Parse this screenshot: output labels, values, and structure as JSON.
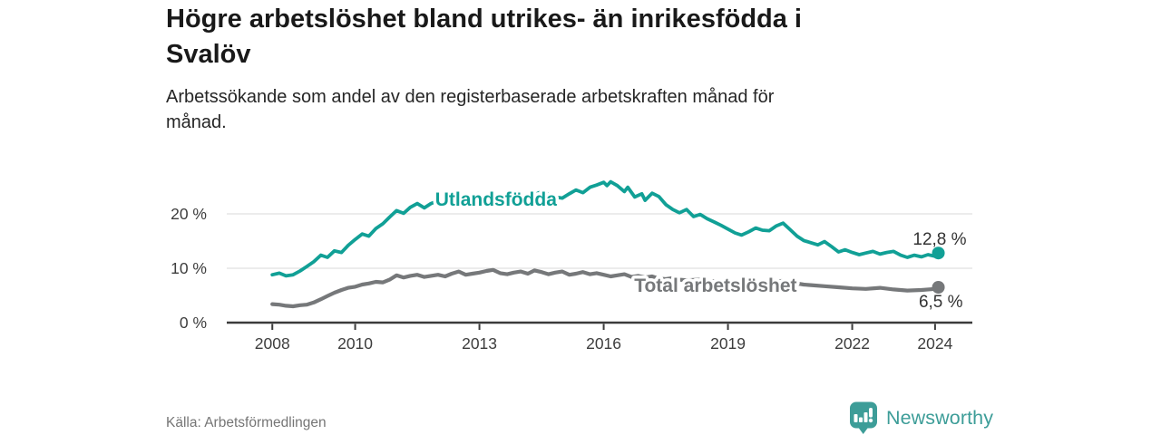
{
  "header": {
    "title": "Högre arbetslöshet bland utrikes- än inrikesfödda i\nSvalöv",
    "subtitle": "Arbetssökande som andel av den registerbaserade arbetskraften månad för\nmånad."
  },
  "footer": {
    "source": "Källa: Arbetsförmedlingen",
    "logo_text": "Newsworthy",
    "logo_color": "#3d9d98"
  },
  "chart_data": {
    "type": "line",
    "unit": "%",
    "x_domain": [
      2006.9,
      2024.9
    ],
    "y_domain": [
      0,
      28
    ],
    "grid": "horizontal",
    "axis_color": "#3b3b3b",
    "grid_color": "#d9d9d9",
    "value_label_color": "#333333",
    "x_ticks": [
      2008,
      2010,
      2013,
      2016,
      2019,
      2022,
      2024
    ],
    "y_ticks": [
      {
        "value": 0,
        "label": "0 %"
      },
      {
        "value": 10,
        "label": "10 %"
      },
      {
        "value": 20,
        "label": "20 %"
      }
    ],
    "series": [
      {
        "name": "Total arbetslöshet",
        "color": "#76787a",
        "width": 4.2,
        "label": {
          "x": 2018.7,
          "y": 6.8
        },
        "end_value": 6.5,
        "end_label": "6,5 %",
        "end_label_offset": {
          "dx": 27,
          "dy": 22
        },
        "points": [
          [
            2008.0,
            3.4
          ],
          [
            2008.17,
            3.3
          ],
          [
            2008.33,
            3.1
          ],
          [
            2008.5,
            3.0
          ],
          [
            2008.67,
            3.2
          ],
          [
            2008.83,
            3.3
          ],
          [
            2009.0,
            3.7
          ],
          [
            2009.17,
            4.3
          ],
          [
            2009.33,
            4.9
          ],
          [
            2009.5,
            5.5
          ],
          [
            2009.67,
            6.0
          ],
          [
            2009.83,
            6.4
          ],
          [
            2010.0,
            6.6
          ],
          [
            2010.17,
            7.0
          ],
          [
            2010.33,
            7.2
          ],
          [
            2010.5,
            7.5
          ],
          [
            2010.67,
            7.4
          ],
          [
            2010.83,
            7.9
          ],
          [
            2011.0,
            8.7
          ],
          [
            2011.17,
            8.3
          ],
          [
            2011.33,
            8.6
          ],
          [
            2011.5,
            8.8
          ],
          [
            2011.67,
            8.4
          ],
          [
            2011.83,
            8.6
          ],
          [
            2012.0,
            8.8
          ],
          [
            2012.17,
            8.5
          ],
          [
            2012.33,
            9.0
          ],
          [
            2012.5,
            9.4
          ],
          [
            2012.67,
            8.8
          ],
          [
            2012.83,
            9.0
          ],
          [
            2013.0,
            9.2
          ],
          [
            2013.17,
            9.5
          ],
          [
            2013.33,
            9.7
          ],
          [
            2013.5,
            9.1
          ],
          [
            2013.67,
            8.9
          ],
          [
            2013.83,
            9.2
          ],
          [
            2014.0,
            9.4
          ],
          [
            2014.17,
            9.0
          ],
          [
            2014.33,
            9.6
          ],
          [
            2014.5,
            9.3
          ],
          [
            2014.67,
            8.9
          ],
          [
            2014.83,
            9.2
          ],
          [
            2015.0,
            9.4
          ],
          [
            2015.17,
            8.8
          ],
          [
            2015.33,
            9.0
          ],
          [
            2015.5,
            9.3
          ],
          [
            2015.67,
            8.9
          ],
          [
            2015.83,
            9.1
          ],
          [
            2016.0,
            8.8
          ],
          [
            2016.17,
            8.5
          ],
          [
            2016.33,
            8.7
          ],
          [
            2016.5,
            8.9
          ],
          [
            2016.67,
            8.4
          ],
          [
            2016.83,
            8.6
          ],
          [
            2017.0,
            8.3
          ],
          [
            2017.17,
            8.5
          ],
          [
            2017.33,
            8.1
          ],
          [
            2017.5,
            8.0
          ],
          [
            2017.67,
            8.2
          ],
          [
            2017.83,
            7.9
          ],
          [
            2018.0,
            7.8
          ],
          [
            2018.33,
            7.9
          ],
          [
            2018.67,
            7.6
          ],
          [
            2019.0,
            7.4
          ],
          [
            2019.33,
            7.3
          ],
          [
            2019.67,
            7.2
          ],
          [
            2020.0,
            7.4
          ],
          [
            2020.33,
            7.7
          ],
          [
            2020.67,
            7.2
          ],
          [
            2020.83,
            7.0
          ],
          [
            2021.0,
            6.9
          ],
          [
            2021.33,
            6.7
          ],
          [
            2021.67,
            6.5
          ],
          [
            2022.0,
            6.3
          ],
          [
            2022.33,
            6.2
          ],
          [
            2022.67,
            6.4
          ],
          [
            2023.0,
            6.1
          ],
          [
            2023.33,
            5.9
          ],
          [
            2023.67,
            6.0
          ],
          [
            2024.0,
            6.2
          ],
          [
            2024.08,
            6.5
          ]
        ]
      },
      {
        "name": "Utlandsfödda",
        "color": "#11a096",
        "width": 3.8,
        "label": {
          "x": 2013.4,
          "y": 22.7
        },
        "end_value": 12.8,
        "end_label": "12,8 %",
        "end_label_offset": {
          "dx": 31,
          "dy": -9
        },
        "points": [
          [
            2008.0,
            8.8
          ],
          [
            2008.17,
            9.1
          ],
          [
            2008.33,
            8.6
          ],
          [
            2008.5,
            8.8
          ],
          [
            2008.67,
            9.5
          ],
          [
            2008.83,
            10.3
          ],
          [
            2009.0,
            11.2
          ],
          [
            2009.17,
            12.4
          ],
          [
            2009.33,
            12.0
          ],
          [
            2009.5,
            13.2
          ],
          [
            2009.67,
            12.9
          ],
          [
            2009.83,
            14.2
          ],
          [
            2010.0,
            15.3
          ],
          [
            2010.17,
            16.3
          ],
          [
            2010.33,
            15.9
          ],
          [
            2010.5,
            17.3
          ],
          [
            2010.67,
            18.2
          ],
          [
            2010.83,
            19.4
          ],
          [
            2011.0,
            20.6
          ],
          [
            2011.17,
            20.1
          ],
          [
            2011.33,
            21.2
          ],
          [
            2011.5,
            21.9
          ],
          [
            2011.67,
            21.1
          ],
          [
            2011.83,
            21.9
          ],
          [
            2012.0,
            22.4
          ],
          [
            2012.17,
            21.5
          ],
          [
            2012.33,
            21.9
          ],
          [
            2012.5,
            22.7
          ],
          [
            2012.67,
            22.1
          ],
          [
            2012.83,
            22.4
          ],
          [
            2013.0,
            22.6
          ],
          [
            2013.17,
            22.2
          ],
          [
            2013.33,
            22.9
          ],
          [
            2013.5,
            23.5
          ],
          [
            2013.67,
            23.1
          ],
          [
            2013.83,
            22.8
          ],
          [
            2014.0,
            23.2
          ],
          [
            2014.17,
            22.8
          ],
          [
            2014.33,
            23.5
          ],
          [
            2014.5,
            24.1
          ],
          [
            2014.67,
            23.6
          ],
          [
            2014.83,
            23.1
          ],
          [
            2015.0,
            22.9
          ],
          [
            2015.17,
            23.7
          ],
          [
            2015.33,
            24.4
          ],
          [
            2015.5,
            23.9
          ],
          [
            2015.67,
            24.9
          ],
          [
            2015.83,
            25.3
          ],
          [
            2016.0,
            25.8
          ],
          [
            2016.08,
            25.2
          ],
          [
            2016.17,
            25.9
          ],
          [
            2016.33,
            25.2
          ],
          [
            2016.5,
            24.1
          ],
          [
            2016.58,
            24.9
          ],
          [
            2016.75,
            23.1
          ],
          [
            2016.92,
            23.7
          ],
          [
            2017.0,
            22.5
          ],
          [
            2017.17,
            23.8
          ],
          [
            2017.33,
            23.2
          ],
          [
            2017.5,
            21.7
          ],
          [
            2017.67,
            20.8
          ],
          [
            2017.83,
            20.2
          ],
          [
            2018.0,
            20.8
          ],
          [
            2018.17,
            19.5
          ],
          [
            2018.33,
            19.9
          ],
          [
            2018.5,
            19.1
          ],
          [
            2018.67,
            18.5
          ],
          [
            2018.83,
            17.9
          ],
          [
            2019.0,
            17.2
          ],
          [
            2019.17,
            16.5
          ],
          [
            2019.33,
            16.1
          ],
          [
            2019.5,
            16.7
          ],
          [
            2019.67,
            17.4
          ],
          [
            2019.83,
            17.0
          ],
          [
            2020.0,
            16.9
          ],
          [
            2020.17,
            17.8
          ],
          [
            2020.33,
            18.3
          ],
          [
            2020.5,
            17.1
          ],
          [
            2020.67,
            15.9
          ],
          [
            2020.83,
            15.1
          ],
          [
            2021.0,
            14.7
          ],
          [
            2021.17,
            14.3
          ],
          [
            2021.33,
            14.9
          ],
          [
            2021.5,
            14.0
          ],
          [
            2021.67,
            13.0
          ],
          [
            2021.83,
            13.4
          ],
          [
            2022.0,
            12.9
          ],
          [
            2022.17,
            12.5
          ],
          [
            2022.33,
            12.8
          ],
          [
            2022.5,
            13.1
          ],
          [
            2022.67,
            12.6
          ],
          [
            2022.83,
            12.9
          ],
          [
            2023.0,
            13.1
          ],
          [
            2023.17,
            12.4
          ],
          [
            2023.33,
            12.0
          ],
          [
            2023.5,
            12.4
          ],
          [
            2023.67,
            12.1
          ],
          [
            2023.83,
            12.5
          ],
          [
            2024.0,
            12.2
          ],
          [
            2024.08,
            12.8
          ]
        ]
      }
    ]
  }
}
